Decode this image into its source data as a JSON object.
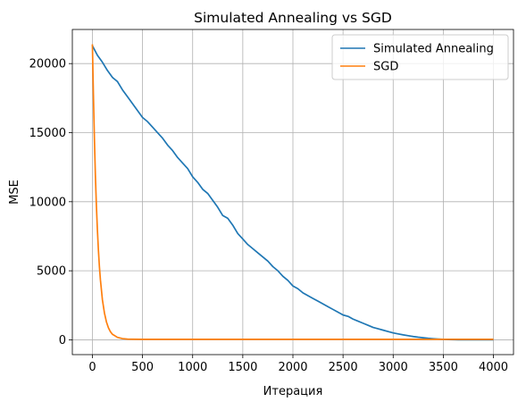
{
  "chart_data": {
    "type": "line",
    "title": "Simulated Annealing vs SGD",
    "xlabel": "Итерация",
    "ylabel": "MSE",
    "xlim": [
      -200,
      4200
    ],
    "ylim": [
      -1070,
      22470
    ],
    "xticks": [
      0,
      500,
      1000,
      1500,
      2000,
      2500,
      3000,
      3500,
      4000
    ],
    "xtick_labels": [
      "0",
      "500",
      "1000",
      "1500",
      "2000",
      "2500",
      "3000",
      "3500",
      "4000"
    ],
    "yticks": [
      0,
      5000,
      10000,
      15000,
      20000
    ],
    "ytick_labels": [
      "0",
      "5000",
      "10000",
      "15000",
      "20000"
    ],
    "grid": true,
    "legend_position": "top-right",
    "series": [
      {
        "name": "Simulated Annealing",
        "color": "#1f77b4",
        "x": [
          0,
          50,
          100,
          150,
          200,
          250,
          300,
          350,
          400,
          450,
          500,
          550,
          600,
          650,
          700,
          750,
          800,
          850,
          900,
          950,
          1000,
          1050,
          1100,
          1150,
          1200,
          1250,
          1300,
          1350,
          1400,
          1450,
          1500,
          1550,
          1600,
          1650,
          1700,
          1750,
          1800,
          1850,
          1900,
          1950,
          2000,
          2050,
          2100,
          2150,
          2200,
          2250,
          2300,
          2350,
          2400,
          2450,
          2500,
          2550,
          2600,
          2650,
          2700,
          2750,
          2800,
          2850,
          2900,
          2950,
          3000,
          3050,
          3100,
          3150,
          3200,
          3250,
          3300,
          3350,
          3400,
          3450,
          3500,
          3550,
          3600,
          3650,
          3700,
          3750,
          3800,
          3900,
          4000
        ],
        "y": [
          21300,
          20600,
          20100,
          19500,
          19000,
          18700,
          18100,
          17600,
          17100,
          16600,
          16100,
          15800,
          15400,
          15000,
          14600,
          14100,
          13700,
          13200,
          12800,
          12400,
          11800,
          11400,
          10900,
          10600,
          10100,
          9600,
          9000,
          8800,
          8300,
          7700,
          7300,
          6900,
          6600,
          6300,
          6000,
          5700,
          5300,
          5000,
          4600,
          4300,
          3900,
          3700,
          3400,
          3200,
          3000,
          2800,
          2600,
          2400,
          2200,
          2000,
          1800,
          1700,
          1500,
          1350,
          1200,
          1050,
          900,
          800,
          700,
          600,
          500,
          430,
          360,
          300,
          240,
          190,
          150,
          110,
          80,
          55,
          35,
          20,
          10,
          5,
          2,
          0,
          0,
          0,
          0
        ]
      },
      {
        "name": "SGD",
        "color": "#ff7f0e",
        "x": [
          0,
          10,
          20,
          30,
          40,
          50,
          60,
          70,
          80,
          100,
          120,
          140,
          160,
          180,
          200,
          250,
          300,
          350,
          400,
          500,
          700,
          1000,
          2000,
          3000,
          4000
        ],
        "y": [
          21400,
          17800,
          14600,
          11900,
          9700,
          7950,
          6500,
          5300,
          4350,
          2900,
          1950,
          1300,
          870,
          590,
          400,
          180,
          90,
          55,
          45,
          40,
          40,
          40,
          40,
          40,
          40
        ]
      }
    ]
  }
}
